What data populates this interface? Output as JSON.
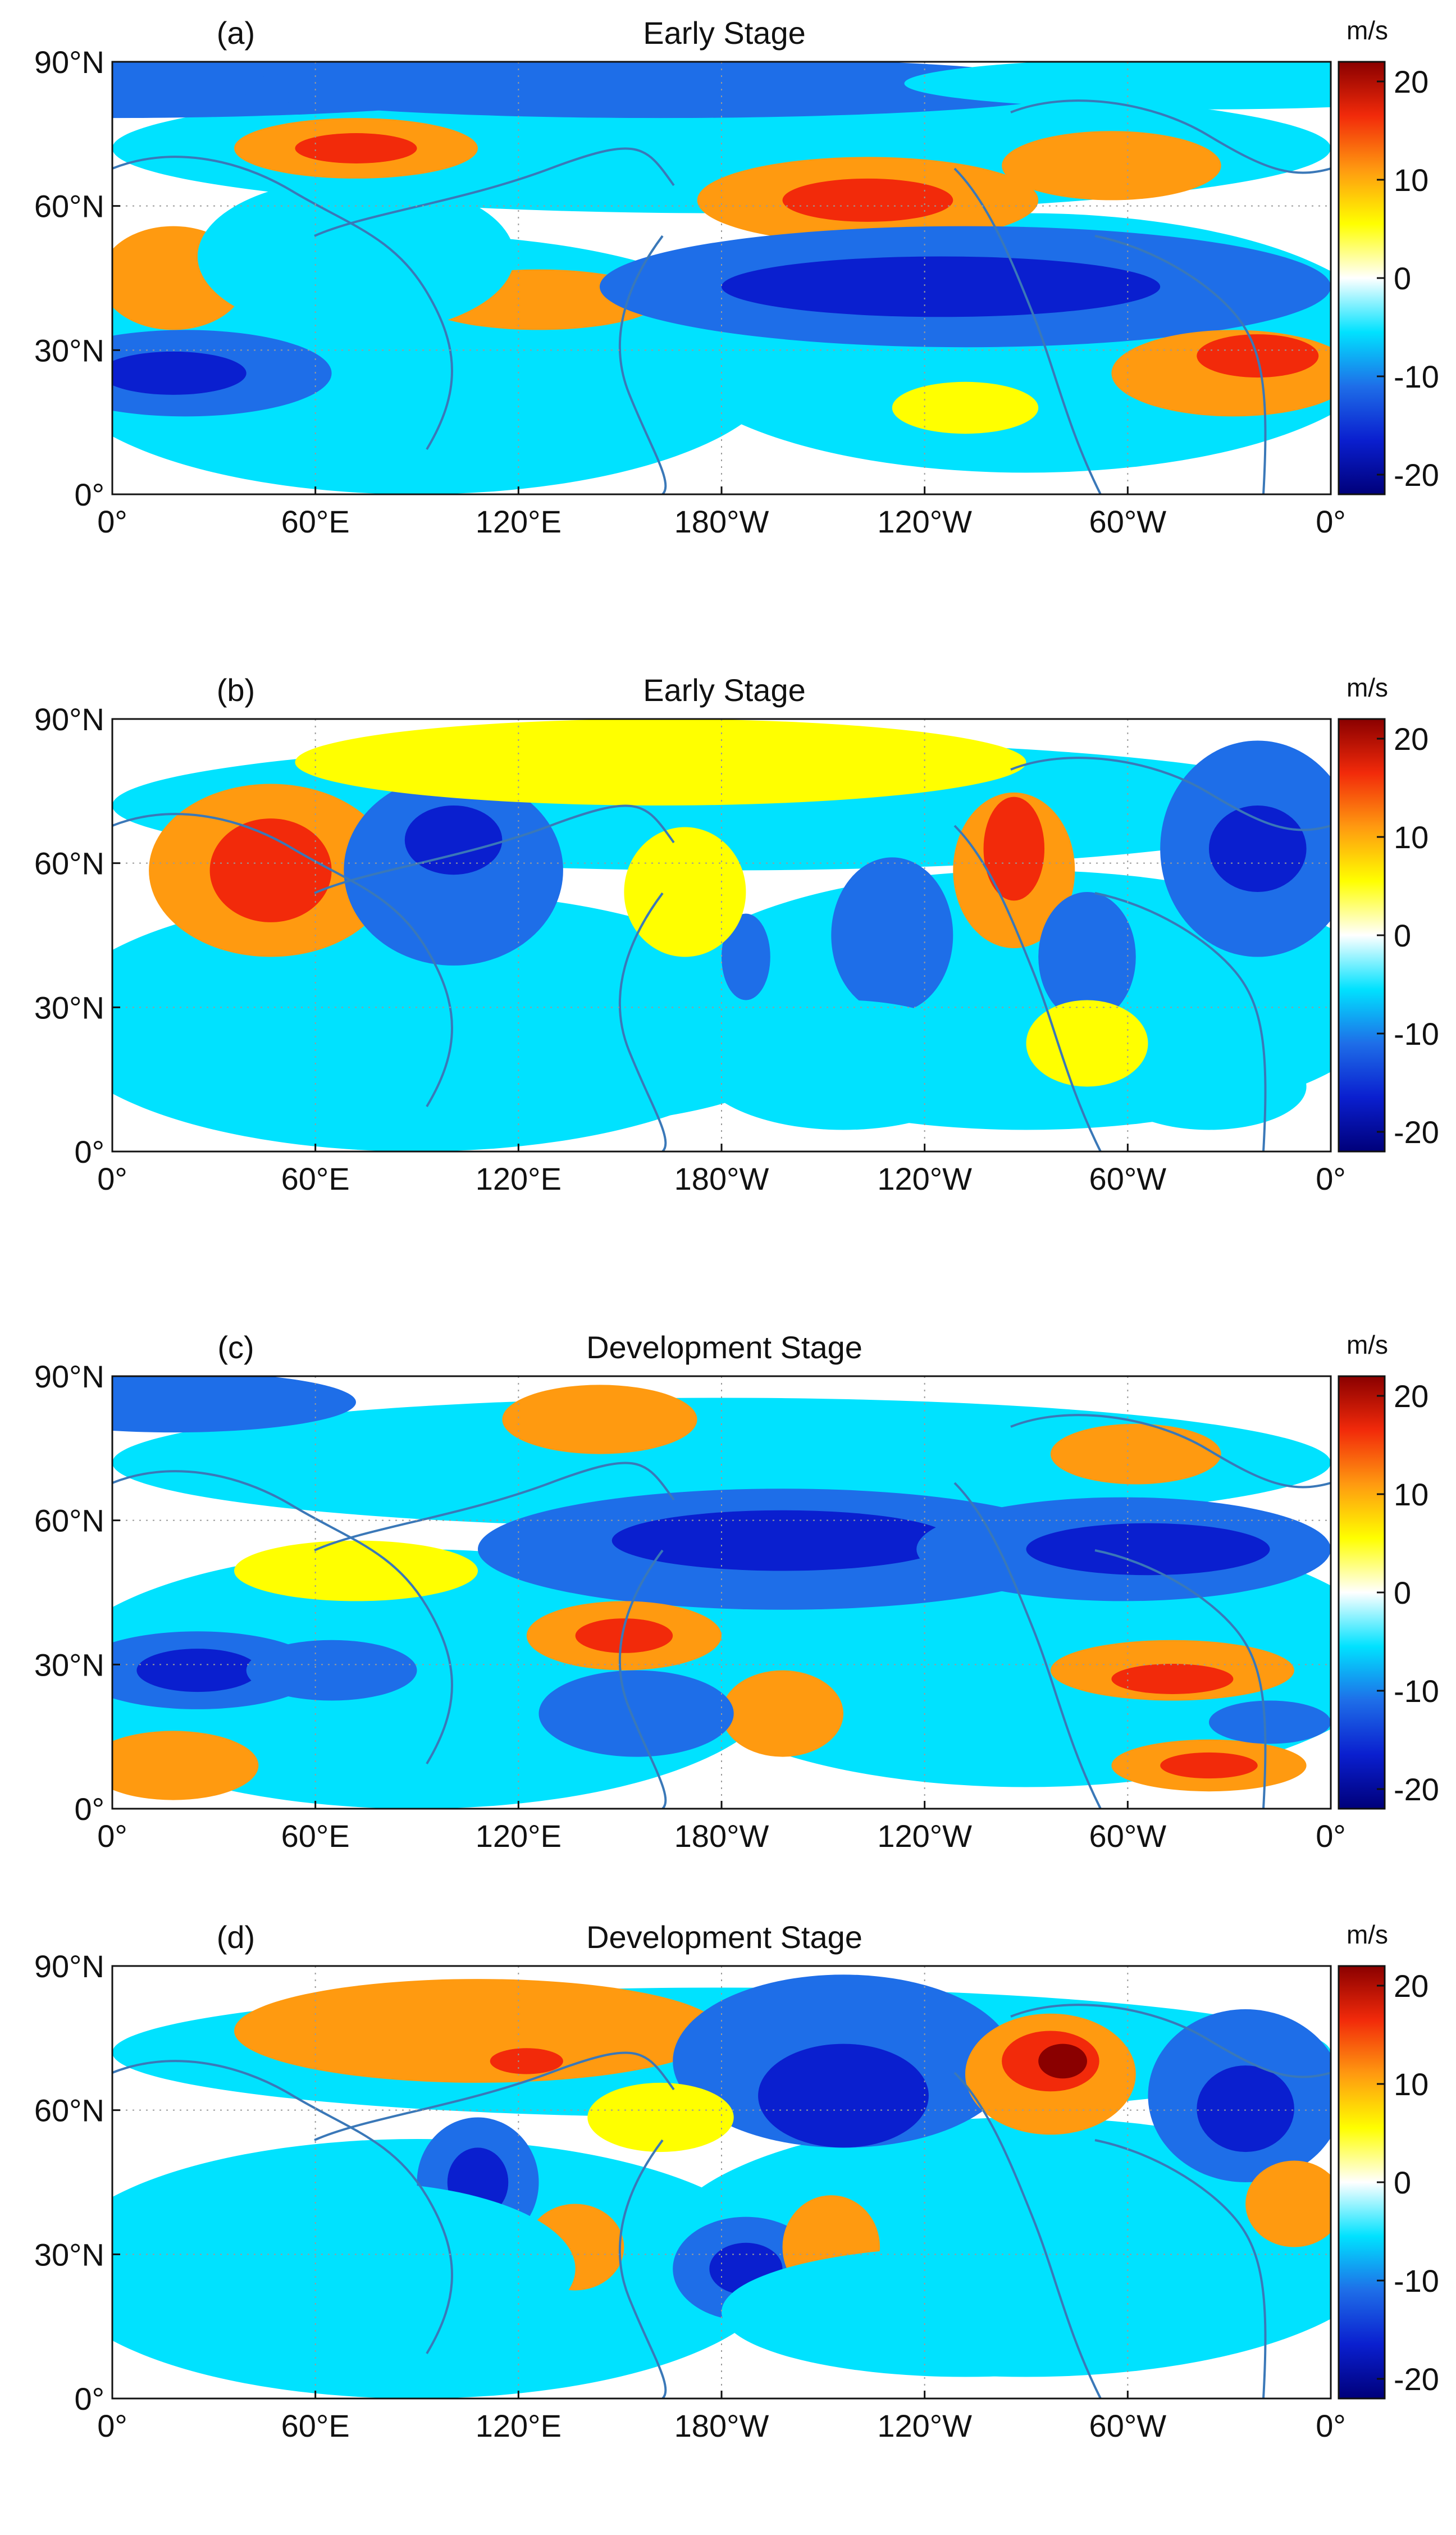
{
  "figure": {
    "colorbar": {
      "unit": "m/s",
      "ticks": [
        "20",
        "10",
        "0",
        "-10",
        "-20"
      ],
      "range": [
        -20,
        20
      ],
      "colors": [
        "#00007a",
        "#0a1fcf",
        "#1e6ee8",
        "#00e2ff",
        "#ffffff",
        "#ffff00",
        "#ff9a10",
        "#f22a0a",
        "#8a0000"
      ]
    },
    "axes": {
      "y_ticks": [
        "90°N",
        "60°N",
        "30°N",
        "0°"
      ],
      "x_ticks": [
        "0°",
        "60°E",
        "120°E",
        "180°W",
        "120°W",
        "60°W",
        "0°"
      ]
    },
    "coastline_color": "#3a78b8",
    "grid": "dotted"
  },
  "panels": [
    {
      "label": "(a)",
      "title": "Early Stage"
    },
    {
      "label": "(b)",
      "title": "Early Stage"
    },
    {
      "label": "(c)",
      "title": "Development Stage"
    },
    {
      "label": "(d)",
      "title": "Development Stage"
    }
  ]
}
